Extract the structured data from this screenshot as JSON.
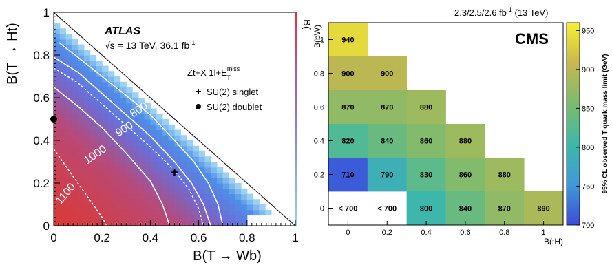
{
  "chart_data": [
    {
      "type": "heatmap",
      "id": "atlas",
      "experiment": "ATLAS",
      "energy_label_prefix": "√s = 13 TeV, 36.1 fb",
      "energy_label_suffix": "-1",
      "analysis_main": "Zt+X 1l+E",
      "analysis_sup": "miss",
      "analysis_sub": "T",
      "xlabel": "B(T → Wb)",
      "ylabel": "B(T → Ht)",
      "xlim": [
        0,
        1
      ],
      "ylim": [
        0,
        1
      ],
      "x_ticks": [
        "0",
        "0.2",
        "0.4",
        "0.6",
        "0.8",
        "1"
      ],
      "y_ticks": [
        "0",
        "0.2",
        "0.4",
        "0.6",
        "0.8",
        "1"
      ],
      "colorbar_visible_label": "B(",
      "contours": [
        {
          "label": "800",
          "style": "solid",
          "points": [
            [
              0.02,
              0.86
            ],
            [
              0.1,
              0.79
            ],
            [
              0.2,
              0.7
            ],
            [
              0.3,
              0.61
            ],
            [
              0.4,
              0.52
            ],
            [
              0.5,
              0.4
            ],
            [
              0.58,
              0.3
            ],
            [
              0.64,
              0.2
            ],
            [
              0.68,
              0.1
            ],
            [
              0.7,
              0.0
            ]
          ]
        },
        {
          "label": "900",
          "style": "solid",
          "points": [
            [
              0.0,
              0.79
            ],
            [
              0.1,
              0.72
            ],
            [
              0.2,
              0.62
            ],
            [
              0.3,
              0.52
            ],
            [
              0.4,
              0.42
            ],
            [
              0.5,
              0.3
            ],
            [
              0.57,
              0.2
            ],
            [
              0.62,
              0.1
            ],
            [
              0.65,
              0.0
            ]
          ]
        },
        {
          "label": "900",
          "style": "dashed",
          "points": [
            [
              0.0,
              0.74
            ],
            [
              0.1,
              0.67
            ],
            [
              0.2,
              0.57
            ],
            [
              0.3,
              0.47
            ],
            [
              0.4,
              0.37
            ],
            [
              0.5,
              0.26
            ],
            [
              0.56,
              0.17
            ],
            [
              0.6,
              0.08
            ],
            [
              0.62,
              0.0
            ]
          ]
        },
        {
          "label": "1000",
          "style": "solid",
          "points": [
            [
              0.0,
              0.65
            ],
            [
              0.1,
              0.56
            ],
            [
              0.2,
              0.46
            ],
            [
              0.3,
              0.34
            ],
            [
              0.4,
              0.21
            ],
            [
              0.45,
              0.1
            ],
            [
              0.48,
              0.0
            ]
          ]
        },
        {
          "label": "1100",
          "style": "dashed",
          "points": [
            [
              0.0,
              0.36
            ],
            [
              0.05,
              0.28
            ],
            [
              0.1,
              0.2
            ],
            [
              0.15,
              0.12
            ],
            [
              0.2,
              0.04
            ],
            [
              0.22,
              0.0
            ]
          ]
        }
      ],
      "contour_labels": [
        {
          "text": "800",
          "x": 0.36,
          "y": 0.53,
          "angle": -33
        },
        {
          "text": "900",
          "x": 0.3,
          "y": 0.44,
          "angle": -33
        },
        {
          "text": "1000",
          "x": 0.18,
          "y": 0.32,
          "angle": -35
        },
        {
          "text": "1100",
          "x": 0.06,
          "y": 0.14,
          "angle": -50
        }
      ],
      "points": [
        {
          "name": "SU(2) singlet",
          "marker": "cross",
          "x": 0.5,
          "y": 0.25
        },
        {
          "name": "SU(2) doublet",
          "marker": "dot",
          "x": 0.0,
          "y": 0.5
        }
      ],
      "legend": [
        "SU(2) singlet",
        "SU(2) doublet"
      ]
    },
    {
      "type": "heatmap",
      "id": "cms",
      "experiment": "CMS",
      "lumi_label": "2.3/2.5/2.6 fb",
      "lumi_sup": "-1",
      "lumi_energy": " (13 TeV)",
      "xlabel": "B(tH)",
      "ylabel": "B(bW)",
      "x_ticks": [
        "0",
        "0.2",
        "0.4",
        "0.6",
        "0.8",
        "1"
      ],
      "y_ticks": [
        "0",
        "0.2",
        "0.4",
        "0.6",
        "0.8",
        "1"
      ],
      "colorbar_label": "95% CL observed T quark mass limit (GeV)",
      "colorbar_ticks": [
        "700",
        "750",
        "800",
        "850",
        "900",
        "950"
      ],
      "zlim": [
        700,
        960
      ],
      "cells": [
        {
          "bW": 1.0,
          "tH": 0.0,
          "value": 940,
          "label": "940"
        },
        {
          "bW": 0.8,
          "tH": 0.0,
          "value": 900,
          "label": "900"
        },
        {
          "bW": 0.8,
          "tH": 0.2,
          "value": 900,
          "label": "900"
        },
        {
          "bW": 0.6,
          "tH": 0.0,
          "value": 870,
          "label": "870"
        },
        {
          "bW": 0.6,
          "tH": 0.2,
          "value": 870,
          "label": "870"
        },
        {
          "bW": 0.6,
          "tH": 0.4,
          "value": 880,
          "label": "880"
        },
        {
          "bW": 0.4,
          "tH": 0.0,
          "value": 820,
          "label": "820"
        },
        {
          "bW": 0.4,
          "tH": 0.2,
          "value": 840,
          "label": "840"
        },
        {
          "bW": 0.4,
          "tH": 0.4,
          "value": 860,
          "label": "860"
        },
        {
          "bW": 0.4,
          "tH": 0.6,
          "value": 880,
          "label": "880"
        },
        {
          "bW": 0.2,
          "tH": 0.0,
          "value": 710,
          "label": "710"
        },
        {
          "bW": 0.2,
          "tH": 0.2,
          "value": 790,
          "label": "790"
        },
        {
          "bW": 0.2,
          "tH": 0.4,
          "value": 830,
          "label": "830"
        },
        {
          "bW": 0.2,
          "tH": 0.6,
          "value": 860,
          "label": "860"
        },
        {
          "bW": 0.2,
          "tH": 0.8,
          "value": 880,
          "label": "880"
        },
        {
          "bW": 0.0,
          "tH": 0.0,
          "value": null,
          "label": "< 700"
        },
        {
          "bW": 0.0,
          "tH": 0.2,
          "value": null,
          "label": "< 700"
        },
        {
          "bW": 0.0,
          "tH": 0.4,
          "value": 800,
          "label": "800"
        },
        {
          "bW": 0.0,
          "tH": 0.6,
          "value": 840,
          "label": "840"
        },
        {
          "bW": 0.0,
          "tH": 0.8,
          "value": 870,
          "label": "870"
        },
        {
          "bW": 0.0,
          "tH": 1.0,
          "value": 890,
          "label": "890"
        }
      ]
    }
  ]
}
